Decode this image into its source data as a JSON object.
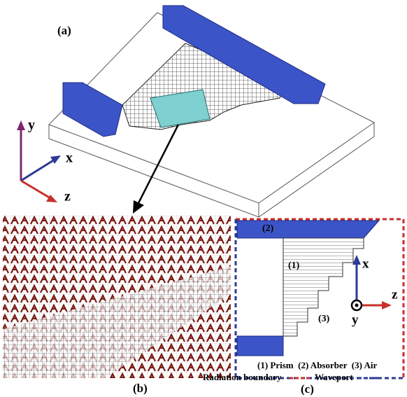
{
  "panel_a": {
    "label": "(a)",
    "axes": {
      "y": "y",
      "x": "x",
      "z": "z"
    }
  },
  "panel_b": {
    "label": "(b)"
  },
  "panel_c": {
    "label": "(c)",
    "region_absorber": "(2)",
    "region_prism": "(1)",
    "region_air": "(3)",
    "axes": {
      "x": "x",
      "z": "z",
      "y": "y"
    },
    "legend": {
      "regions": "(1) Prism  (2) Absorber  (3) Air",
      "radiation": "Radiation boundary",
      "waveport": "Waveport"
    }
  }
}
